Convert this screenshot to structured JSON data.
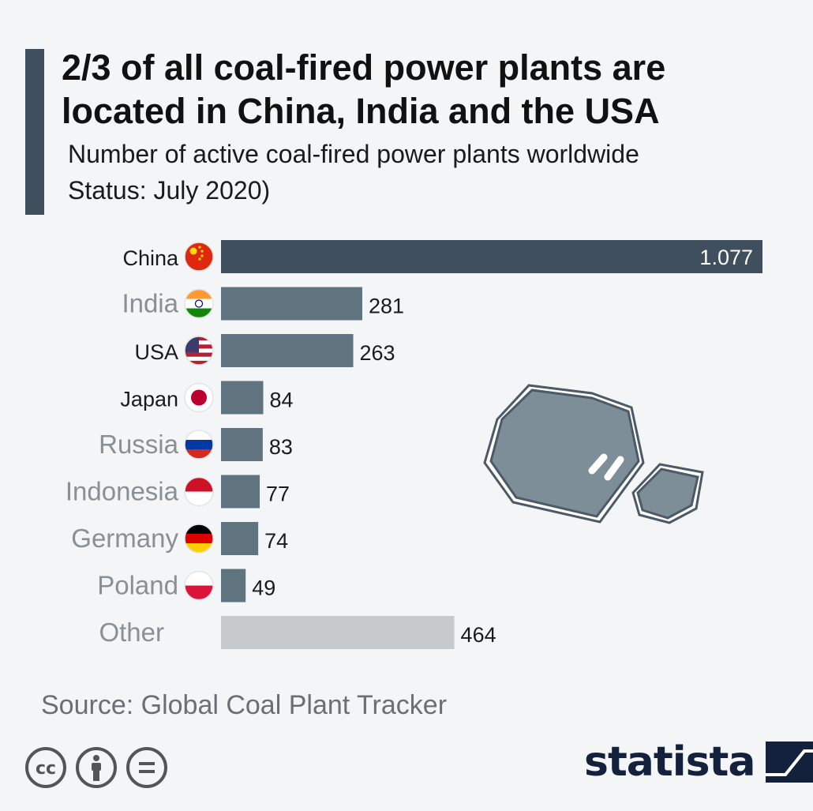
{
  "title": "2/3 of all coal-fired power plants are located in China, India and the USA",
  "subtitle": "Number of active coal-fired power plants worldwide Status: July 2020)",
  "source": "Source: Global Coal Plant Tracker",
  "brand": "statista",
  "colors": {
    "accent": "#3f4f5e",
    "bar_top": "#3f4f5e",
    "bar": "#607480",
    "bar_other": "#c7cacd",
    "background": "#f4f5f6"
  },
  "icons": [
    "cc-icon",
    "attribution-icon",
    "no-derivatives-icon",
    "statista-logo-icon"
  ],
  "chart_data": {
    "type": "bar",
    "orientation": "horizontal",
    "categories": [
      "China",
      "India",
      "USA",
      "Japan",
      "Russia",
      "Indonesia",
      "Germany",
      "Poland",
      "Other"
    ],
    "values": [
      1077,
      281,
      263,
      84,
      83,
      77,
      74,
      49,
      464
    ],
    "value_labels": [
      "1.077",
      "281",
      "263",
      "84",
      "83",
      "77",
      "74",
      "49",
      "464"
    ],
    "flags": [
      "china-flag-icon",
      "india-flag-icon",
      "usa-flag-icon",
      "japan-flag-icon",
      "russia-flag-icon",
      "indonesia-flag-icon",
      "germany-flag-icon",
      "poland-flag-icon",
      ""
    ],
    "xlim": [
      0,
      1077
    ],
    "grid": false,
    "legend": "none"
  }
}
